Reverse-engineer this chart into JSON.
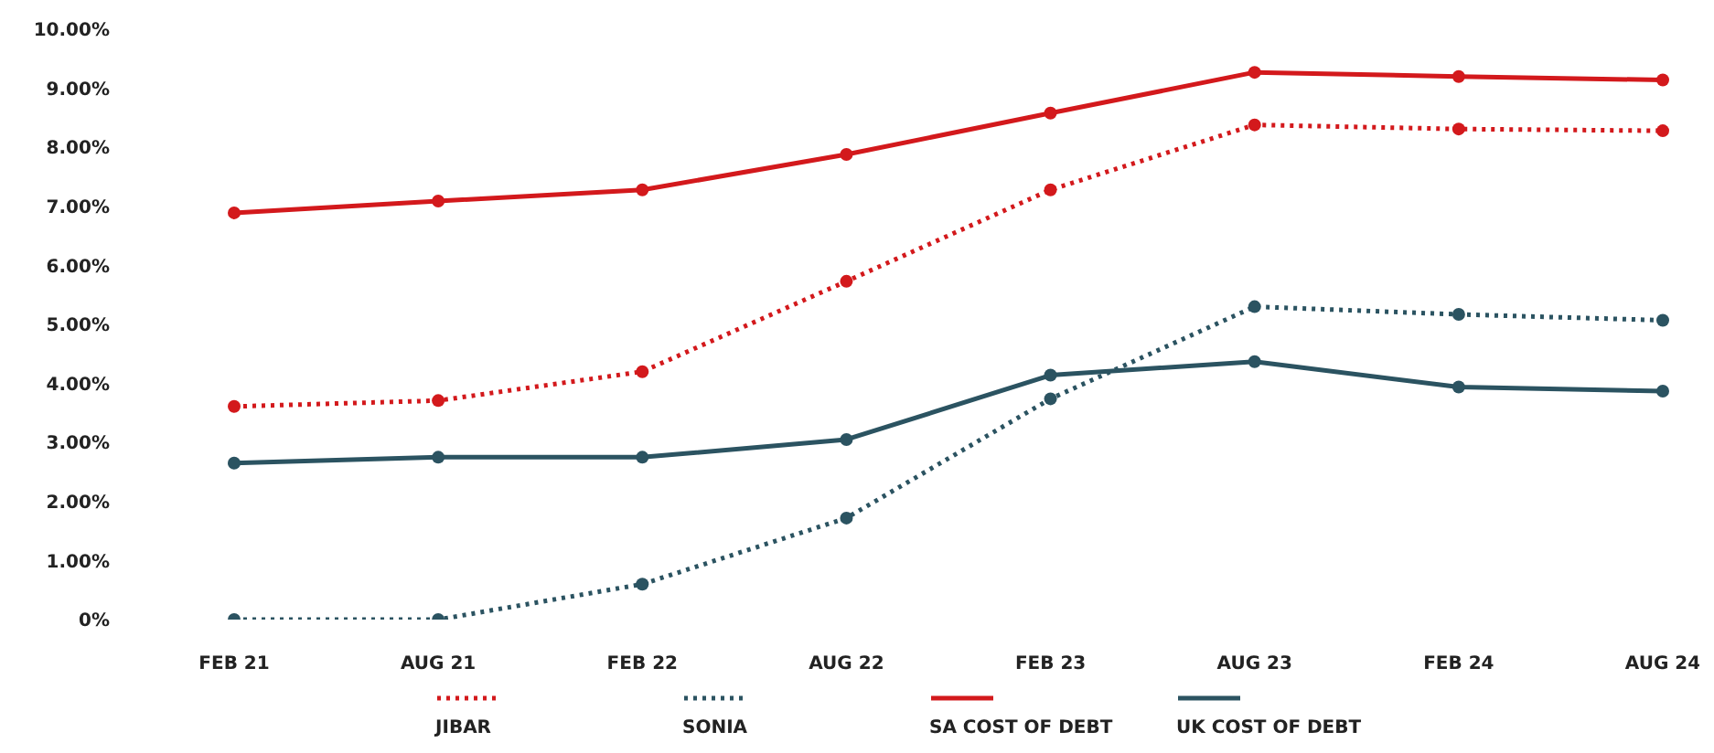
{
  "chart_data": {
    "type": "line",
    "categories": [
      "FEB 21",
      "AUG 21",
      "FEB 22",
      "AUG 22",
      "FEB 23",
      "AUG 23",
      "FEB 24",
      "AUG 24"
    ],
    "series": [
      {
        "name": "JIBAR",
        "color": "#d3191c",
        "line_style": "dotted",
        "values": [
          3.61,
          3.71,
          4.2,
          5.73,
          7.28,
          8.38,
          8.31,
          8.28
        ]
      },
      {
        "name": "SONIA",
        "color": "#2b5361",
        "line_style": "dotted",
        "values": [
          0.0,
          0.0,
          0.6,
          1.72,
          3.74,
          5.3,
          5.17,
          5.07
        ]
      },
      {
        "name": "SA COST OF DEBT",
        "color": "#d3191c",
        "line_style": "solid",
        "values": [
          6.89,
          7.09,
          7.28,
          7.88,
          8.58,
          9.27,
          9.2,
          9.14
        ]
      },
      {
        "name": "UK COST OF DEBT",
        "color": "#2b5361",
        "line_style": "solid",
        "values": [
          2.65,
          2.75,
          2.75,
          3.05,
          4.14,
          4.37,
          3.94,
          3.87
        ]
      }
    ],
    "ylim": [
      0,
      10
    ],
    "yticks": [
      {
        "value": 0,
        "label": "0%"
      },
      {
        "value": 1,
        "label": "1.00%"
      },
      {
        "value": 2,
        "label": "2.00%"
      },
      {
        "value": 3,
        "label": "3.00%"
      },
      {
        "value": 4,
        "label": "4.00%"
      },
      {
        "value": 5,
        "label": "5.00%"
      },
      {
        "value": 6,
        "label": "6.00%"
      },
      {
        "value": 7,
        "label": "7.00%"
      },
      {
        "value": 8,
        "label": "8.00%"
      },
      {
        "value": 9,
        "label": "9.00%"
      },
      {
        "value": 10,
        "label": "10.00%"
      }
    ],
    "grid": false,
    "legend": "bottom",
    "marker": "circle"
  }
}
